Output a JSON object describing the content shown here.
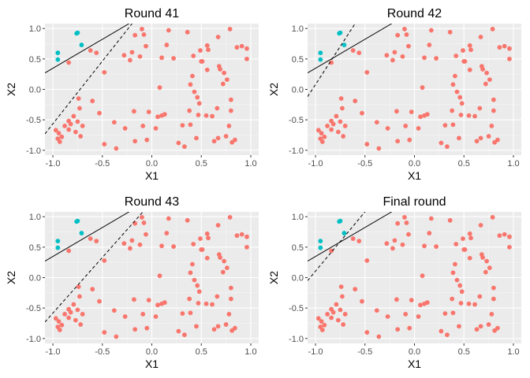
{
  "colors": {
    "panel_bg": "#ebebeb",
    "grid_major": "#ffffff",
    "grid_minor": "#f5f5f5",
    "tick_text": "#4d4d4d",
    "tick_mark": "#333333",
    "class_red": "#f8766d",
    "class_cyan": "#00bfc4",
    "line": "#000000"
  },
  "chart_data": [
    {
      "type": "scatter",
      "title": "Round 41",
      "xlabel": "X1",
      "ylabel": "X2",
      "xlim": [
        -1.08,
        1.08
      ],
      "ylim": [
        -1.08,
        1.08
      ],
      "x_ticks": [
        -1.0,
        -0.5,
        0.0,
        0.5,
        1.0
      ],
      "x_tick_labels": [
        "-1.0",
        "-0.5",
        "0.0",
        "0.5",
        "1.0"
      ],
      "y_ticks": [
        -1.0,
        -0.5,
        0.0,
        0.5,
        1.0
      ],
      "y_tick_labels": [
        "-1.0",
        "-0.5",
        "0.0",
        "0.5",
        "1.0"
      ],
      "grid": true,
      "legend": "none",
      "solid_line": {
        "x": [
          -1.08,
          -0.23
        ],
        "y": [
          0.27,
          1.08
        ]
      },
      "dashed_line": {
        "x": [
          -1.08,
          -0.2
        ],
        "y": [
          -0.73,
          1.08
        ]
      }
    },
    {
      "type": "scatter",
      "title": "Round 42",
      "xlabel": "X1",
      "ylabel": "X2",
      "xlim": [
        -1.08,
        1.08
      ],
      "ylim": [
        -1.08,
        1.08
      ],
      "x_ticks": [
        -1.0,
        -0.5,
        0.0,
        0.5,
        1.0
      ],
      "x_tick_labels": [
        "-1.0",
        "-0.5",
        "0.0",
        "0.5",
        "1.0"
      ],
      "y_ticks": [
        -1.0,
        -0.5,
        0.0,
        0.5,
        1.0
      ],
      "y_tick_labels": [
        "-1.0",
        "-0.5",
        "0.0",
        "0.5",
        "1.0"
      ],
      "grid": true,
      "legend": "none",
      "solid_line": {
        "x": [
          -1.08,
          -0.23
        ],
        "y": [
          0.27,
          1.08
        ]
      },
      "dashed_line": {
        "x": [
          -1.08,
          -0.6
        ],
        "y": [
          -0.12,
          1.08
        ]
      }
    },
    {
      "type": "scatter",
      "title": "Round 43",
      "xlabel": "X1",
      "ylabel": "X2",
      "xlim": [
        -1.08,
        1.08
      ],
      "ylim": [
        -1.08,
        1.08
      ],
      "x_ticks": [
        -1.0,
        -0.5,
        0.0,
        0.5,
        1.0
      ],
      "x_tick_labels": [
        "-1.0",
        "-0.5",
        "0.0",
        "0.5",
        "1.0"
      ],
      "y_ticks": [
        -1.0,
        -0.5,
        0.0,
        0.5,
        1.0
      ],
      "y_tick_labels": [
        "-1.0",
        "-0.5",
        "0.0",
        "0.5",
        "1.0"
      ],
      "grid": true,
      "legend": "none",
      "solid_line": {
        "x": [
          -1.08,
          -0.23
        ],
        "y": [
          0.27,
          1.08
        ]
      },
      "dashed_line": {
        "x": [
          -1.08,
          -0.09
        ],
        "y": [
          -0.73,
          1.08
        ]
      }
    },
    {
      "type": "scatter",
      "title": "Final round",
      "xlabel": "X1",
      "ylabel": "X2",
      "xlim": [
        -1.08,
        1.08
      ],
      "ylim": [
        -1.08,
        1.08
      ],
      "x_ticks": [
        -1.0,
        -0.5,
        0.0,
        0.5,
        1.0
      ],
      "x_tick_labels": [
        "-1.0",
        "-0.5",
        "0.0",
        "0.5",
        "1.0"
      ],
      "y_ticks": [
        -1.0,
        -0.5,
        0.0,
        0.5,
        1.0
      ],
      "y_tick_labels": [
        "-1.0",
        "-0.5",
        "0.0",
        "0.5",
        "1.0"
      ],
      "grid": true,
      "legend": "none",
      "solid_line": {
        "x": [
          -1.08,
          -0.23
        ],
        "y": [
          0.27,
          1.08
        ]
      },
      "dashed_line": {
        "x": [
          -1.08,
          -0.5
        ],
        "y": [
          -0.05,
          1.08
        ]
      }
    }
  ],
  "points": [
    {
      "x": -0.95,
      "y": 0.6,
      "cls": "cyan"
    },
    {
      "x": -0.95,
      "y": 0.49,
      "cls": "cyan"
    },
    {
      "x": -0.76,
      "y": 0.92,
      "cls": "cyan"
    },
    {
      "x": -0.75,
      "y": 0.93,
      "cls": "cyan"
    },
    {
      "x": -0.71,
      "y": 0.73,
      "cls": "cyan"
    },
    {
      "x": -0.97,
      "y": -0.67,
      "cls": "red"
    },
    {
      "x": -0.95,
      "y": -0.81,
      "cls": "red"
    },
    {
      "x": -0.93,
      "y": -0.86,
      "cls": "red"
    },
    {
      "x": -0.94,
      "y": -0.72,
      "cls": "red"
    },
    {
      "x": -0.91,
      "y": -0.78,
      "cls": "red"
    },
    {
      "x": -0.88,
      "y": -0.6,
      "cls": "red"
    },
    {
      "x": -0.84,
      "y": -0.66,
      "cls": "red"
    },
    {
      "x": -0.84,
      "y": -0.52,
      "cls": "red"
    },
    {
      "x": -0.82,
      "y": -0.57,
      "cls": "red"
    },
    {
      "x": -0.79,
      "y": -0.44,
      "cls": "red"
    },
    {
      "x": -0.77,
      "y": -0.7,
      "cls": "red"
    },
    {
      "x": -0.75,
      "y": -0.53,
      "cls": "red"
    },
    {
      "x": -0.73,
      "y": -0.31,
      "cls": "red"
    },
    {
      "x": -0.74,
      "y": -0.15,
      "cls": "red"
    },
    {
      "x": -0.7,
      "y": -0.6,
      "cls": "red"
    },
    {
      "x": -0.72,
      "y": -0.77,
      "cls": "red"
    },
    {
      "x": -0.6,
      "y": -0.19,
      "cls": "red"
    },
    {
      "x": -0.53,
      "y": -0.39,
      "cls": "red"
    },
    {
      "x": -0.84,
      "y": 0.44,
      "cls": "red"
    },
    {
      "x": -0.62,
      "y": 0.64,
      "cls": "red"
    },
    {
      "x": -0.56,
      "y": 0.6,
      "cls": "red"
    },
    {
      "x": -0.48,
      "y": 0.28,
      "cls": "red"
    },
    {
      "x": -0.38,
      "y": -0.54,
      "cls": "red"
    },
    {
      "x": -0.27,
      "y": -0.64,
      "cls": "red"
    },
    {
      "x": -0.36,
      "y": -0.97,
      "cls": "red"
    },
    {
      "x": -0.48,
      "y": -0.9,
      "cls": "red"
    },
    {
      "x": -0.28,
      "y": 0.56,
      "cls": "red"
    },
    {
      "x": -0.22,
      "y": 0.48,
      "cls": "red"
    },
    {
      "x": -0.2,
      "y": 0.61,
      "cls": "red"
    },
    {
      "x": -0.17,
      "y": 0.89,
      "cls": "red"
    },
    {
      "x": -0.1,
      "y": 0.99,
      "cls": "red"
    },
    {
      "x": -0.08,
      "y": 0.9,
      "cls": "red"
    },
    {
      "x": -0.06,
      "y": 0.71,
      "cls": "red"
    },
    {
      "x": -0.17,
      "y": -0.85,
      "cls": "red"
    },
    {
      "x": -0.09,
      "y": -0.6,
      "cls": "red"
    },
    {
      "x": -0.05,
      "y": -0.83,
      "cls": "red"
    },
    {
      "x": 0.04,
      "y": -0.64,
      "cls": "red"
    },
    {
      "x": 0.06,
      "y": -0.45,
      "cls": "red"
    },
    {
      "x": 0.08,
      "y": 0.03,
      "cls": "red"
    },
    {
      "x": 0.1,
      "y": -0.43,
      "cls": "red"
    },
    {
      "x": 0.13,
      "y": -0.41,
      "cls": "red"
    },
    {
      "x": 0.17,
      "y": 0.97,
      "cls": "red"
    },
    {
      "x": 0.22,
      "y": 0.51,
      "cls": "red"
    },
    {
      "x": 0.1,
      "y": 0.52,
      "cls": "red"
    },
    {
      "x": -0.03,
      "y": -0.37,
      "cls": "red"
    },
    {
      "x": -0.18,
      "y": -0.36,
      "cls": "red"
    },
    {
      "x": 0.27,
      "y": -0.88,
      "cls": "red"
    },
    {
      "x": 0.31,
      "y": -0.59,
      "cls": "red"
    },
    {
      "x": 0.33,
      "y": -0.94,
      "cls": "red"
    },
    {
      "x": 0.36,
      "y": 0.94,
      "cls": "red"
    },
    {
      "x": 0.38,
      "y": -0.35,
      "cls": "red"
    },
    {
      "x": 0.39,
      "y": -0.58,
      "cls": "red"
    },
    {
      "x": 0.39,
      "y": 0.08,
      "cls": "red"
    },
    {
      "x": 0.41,
      "y": 0.22,
      "cls": "red"
    },
    {
      "x": 0.42,
      "y": 0.55,
      "cls": "red"
    },
    {
      "x": 0.43,
      "y": -0.04,
      "cls": "red"
    },
    {
      "x": 0.47,
      "y": -0.42,
      "cls": "red"
    },
    {
      "x": 0.45,
      "y": -0.8,
      "cls": "red"
    },
    {
      "x": 0.46,
      "y": -0.13,
      "cls": "red"
    },
    {
      "x": 0.48,
      "y": -0.23,
      "cls": "red"
    },
    {
      "x": 0.49,
      "y": 0.64,
      "cls": "red"
    },
    {
      "x": 0.5,
      "y": 0.46,
      "cls": "red"
    },
    {
      "x": 0.51,
      "y": 0.46,
      "cls": "red"
    },
    {
      "x": 0.55,
      "y": -0.43,
      "cls": "red"
    },
    {
      "x": 0.56,
      "y": 0.72,
      "cls": "red"
    },
    {
      "x": 0.56,
      "y": 0.32,
      "cls": "red"
    },
    {
      "x": 0.61,
      "y": -0.44,
      "cls": "red"
    },
    {
      "x": 0.63,
      "y": -0.85,
      "cls": "red"
    },
    {
      "x": 0.66,
      "y": -0.31,
      "cls": "red"
    },
    {
      "x": 0.67,
      "y": 0.86,
      "cls": "red"
    },
    {
      "x": 0.67,
      "y": -0.8,
      "cls": "red"
    },
    {
      "x": 0.68,
      "y": 0.38,
      "cls": "red"
    },
    {
      "x": 0.69,
      "y": 0.33,
      "cls": "red"
    },
    {
      "x": 0.72,
      "y": 0.09,
      "cls": "red"
    },
    {
      "x": 0.73,
      "y": 0.27,
      "cls": "red"
    },
    {
      "x": 0.75,
      "y": -0.77,
      "cls": "red"
    },
    {
      "x": 0.76,
      "y": 0.16,
      "cls": "red"
    },
    {
      "x": 0.78,
      "y": -0.6,
      "cls": "red"
    },
    {
      "x": 0.79,
      "y": 0.99,
      "cls": "red"
    },
    {
      "x": 0.8,
      "y": -0.35,
      "cls": "red"
    },
    {
      "x": 0.81,
      "y": -0.87,
      "cls": "red"
    },
    {
      "x": 0.8,
      "y": -0.17,
      "cls": "red"
    },
    {
      "x": 0.84,
      "y": -0.83,
      "cls": "red"
    },
    {
      "x": 0.86,
      "y": 0.69,
      "cls": "red"
    },
    {
      "x": 0.91,
      "y": 0.71,
      "cls": "red"
    },
    {
      "x": 0.96,
      "y": 0.67,
      "cls": "red"
    },
    {
      "x": 0.96,
      "y": 0.5,
      "cls": "red"
    },
    {
      "x": -0.12,
      "y": 0.54,
      "cls": "red"
    },
    {
      "x": 0.57,
      "y": 0.65,
      "cls": "red"
    },
    {
      "x": 0.15,
      "y": 0.73,
      "cls": "red"
    }
  ]
}
